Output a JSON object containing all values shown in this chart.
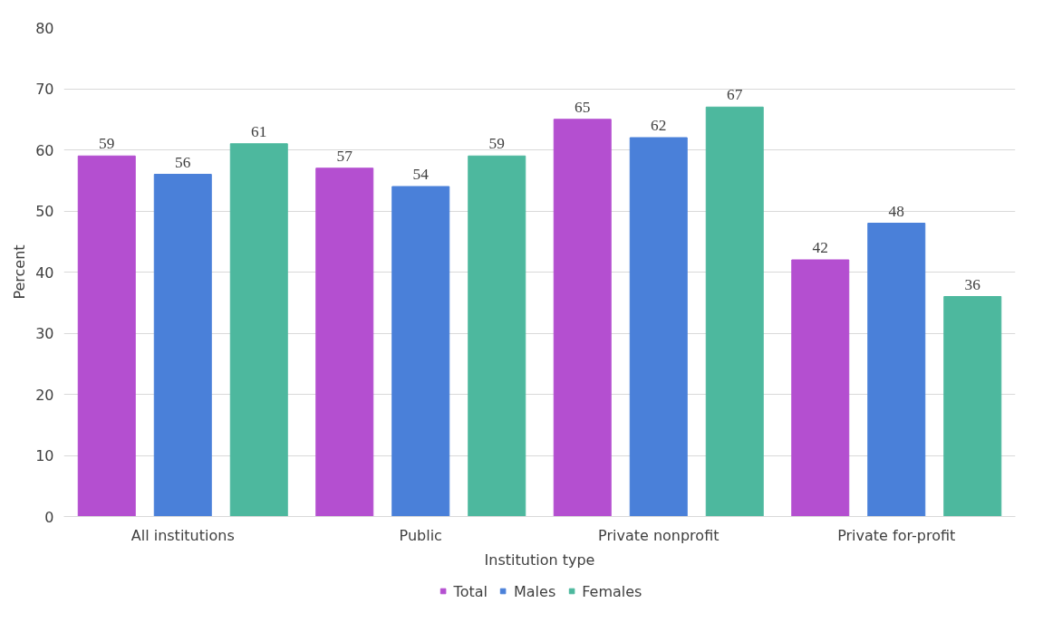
{
  "chart_data": {
    "type": "bar",
    "xlabel": "Institution type",
    "ylabel": "Percent",
    "categories": [
      "All institutions",
      "Public",
      "Private nonprofit",
      "Private for-profit"
    ],
    "series": [
      {
        "name": "Total",
        "color": "#b44fd0",
        "values": [
          59,
          57,
          65,
          42
        ]
      },
      {
        "name": "Males",
        "color": "#4a80d9",
        "values": [
          56,
          54,
          62,
          48
        ]
      },
      {
        "name": "Females",
        "color": "#4db89e",
        "values": [
          61,
          59,
          67,
          36
        ]
      }
    ],
    "ylim": [
      0,
      80
    ],
    "yticks": [
      0,
      10,
      20,
      30,
      40,
      50,
      60,
      70,
      80
    ],
    "grid": "y",
    "legend": "bottom",
    "data_labels": true
  }
}
